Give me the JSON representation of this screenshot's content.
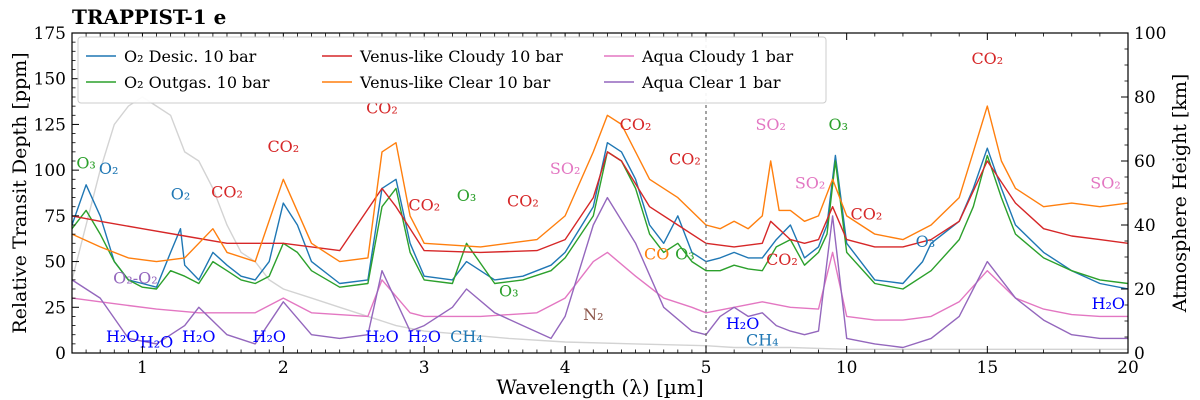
{
  "chart_data": {
    "type": "line",
    "title": "TRAPPIST-1 e",
    "xlabel": "Wavelength (λ) [µm]",
    "ylabel": "Relative Transit Depth [ppm]",
    "ylabel_right": "Atmosphere Height [km]",
    "xscale": "linear below 5 µm, compressed above 5 µm (split at dashed line)",
    "xlim": [
      0.5,
      20
    ],
    "ylim": [
      0,
      175
    ],
    "ylim_right": [
      0,
      100
    ],
    "x_split": 5,
    "grid": false,
    "legend_position": "top-left",
    "x_ticks": [
      1,
      2,
      3,
      4,
      5,
      10,
      15,
      20
    ],
    "y_ticks": [
      0,
      25,
      50,
      75,
      100,
      125,
      150,
      175
    ],
    "y_ticks_right": [
      0,
      20,
      40,
      60,
      80,
      100
    ],
    "x_tick_labels": [
      "1",
      "2",
      "3",
      "4",
      "5",
      "10",
      "15",
      "20"
    ],
    "y_tick_labels": [
      "0",
      "25",
      "50",
      "75",
      "100",
      "125",
      "150",
      "175"
    ],
    "y_tick_labels_right": [
      "0",
      "20",
      "40",
      "60",
      "80",
      "100"
    ],
    "stellar_contamination": {
      "color": "#d3d3d3",
      "x": [
        0.5,
        0.6,
        0.7,
        0.8,
        0.9,
        1.0,
        1.1,
        1.2,
        1.3,
        1.4,
        1.5,
        1.6,
        1.7,
        1.8,
        1.9,
        2.0,
        2.2,
        2.4,
        2.6,
        2.8,
        3.0,
        3.3,
        3.6,
        4.0,
        4.5,
        5.0,
        6,
        8,
        10,
        12,
        15,
        18,
        20
      ],
      "y": [
        40,
        70,
        100,
        125,
        135,
        140,
        135,
        130,
        110,
        105,
        90,
        70,
        55,
        50,
        40,
        35,
        30,
        25,
        20,
        15,
        12,
        10,
        8,
        6,
        5,
        4,
        3,
        3,
        2,
        2,
        2,
        2,
        2
      ]
    },
    "series": [
      {
        "name": "O₂ Desic. 10 bar",
        "color": "#1f77b4",
        "x": [
          0.5,
          0.6,
          0.7,
          0.8,
          0.9,
          1.0,
          1.1,
          1.2,
          1.27,
          1.3,
          1.4,
          1.5,
          1.6,
          1.7,
          1.8,
          1.9,
          2.0,
          2.1,
          2.2,
          2.4,
          2.6,
          2.7,
          2.8,
          2.9,
          3.0,
          3.2,
          3.3,
          3.5,
          3.7,
          3.9,
          4.0,
          4.2,
          4.3,
          4.4,
          4.5,
          4.6,
          4.7,
          4.8,
          4.9,
          5.0,
          5.5,
          6,
          6.5,
          7,
          7.5,
          8,
          8.5,
          9,
          9.3,
          9.6,
          10,
          11,
          12,
          12.7,
          13,
          14,
          14.5,
          15,
          15.5,
          16,
          17,
          18,
          19,
          20
        ],
        "y": [
          70,
          92,
          75,
          50,
          40,
          38,
          36,
          55,
          68,
          48,
          40,
          55,
          48,
          42,
          40,
          50,
          82,
          70,
          50,
          38,
          40,
          90,
          95,
          60,
          42,
          40,
          50,
          40,
          42,
          48,
          55,
          80,
          115,
          110,
          95,
          70,
          60,
          75,
          55,
          50,
          52,
          55,
          52,
          52,
          62,
          70,
          52,
          58,
          70,
          108,
          60,
          40,
          38,
          50,
          60,
          72,
          90,
          112,
          90,
          70,
          55,
          45,
          38,
          35
        ]
      },
      {
        "name": "O₂ Outgas. 10 bar",
        "color": "#2ca02c",
        "x": [
          0.5,
          0.6,
          0.7,
          0.8,
          0.9,
          1.0,
          1.1,
          1.2,
          1.3,
          1.4,
          1.5,
          1.6,
          1.7,
          1.8,
          1.9,
          2.0,
          2.1,
          2.2,
          2.4,
          2.6,
          2.7,
          2.8,
          2.9,
          3.0,
          3.2,
          3.3,
          3.5,
          3.7,
          3.9,
          4.0,
          4.2,
          4.3,
          4.4,
          4.5,
          4.6,
          4.7,
          4.8,
          4.9,
          5.0,
          5.5,
          6,
          6.5,
          7,
          7.5,
          8,
          8.5,
          9,
          9.3,
          9.6,
          10,
          11,
          12,
          13,
          14,
          14.5,
          15,
          15.5,
          16,
          17,
          18,
          19,
          20
        ],
        "y": [
          68,
          78,
          65,
          50,
          40,
          36,
          35,
          45,
          42,
          38,
          50,
          45,
          40,
          38,
          42,
          60,
          55,
          45,
          36,
          38,
          80,
          90,
          55,
          40,
          38,
          60,
          38,
          40,
          45,
          52,
          75,
          110,
          105,
          90,
          65,
          55,
          60,
          50,
          45,
          45,
          48,
          46,
          45,
          58,
          62,
          48,
          55,
          65,
          105,
          55,
          38,
          35,
          45,
          62,
          80,
          108,
          85,
          65,
          52,
          45,
          40,
          38
        ]
      },
      {
        "name": "Venus-like Cloudy 10 bar",
        "color": "#d62728",
        "x": [
          0.5,
          0.7,
          1.0,
          1.3,
          1.6,
          2.0,
          2.4,
          2.7,
          2.8,
          3.0,
          3.4,
          3.8,
          4.0,
          4.2,
          4.3,
          4.4,
          4.6,
          4.8,
          5.0,
          6,
          7,
          7.3,
          8,
          8.5,
          9,
          9.5,
          10,
          11,
          12,
          13,
          14,
          15,
          16,
          17,
          18,
          19,
          20
        ],
        "y": [
          75,
          72,
          68,
          64,
          60,
          60,
          56,
          90,
          80,
          56,
          55,
          56,
          62,
          85,
          110,
          105,
          80,
          70,
          60,
          58,
          60,
          72,
          62,
          60,
          62,
          80,
          62,
          58,
          58,
          62,
          72,
          105,
          82,
          68,
          64,
          62,
          60
        ]
      },
      {
        "name": "Venus-like Clear 10 bar",
        "color": "#ff7f0e",
        "x": [
          0.5,
          0.7,
          0.9,
          1.1,
          1.3,
          1.5,
          1.6,
          1.8,
          2.0,
          2.2,
          2.4,
          2.6,
          2.7,
          2.8,
          2.9,
          3.0,
          3.4,
          3.8,
          4.0,
          4.2,
          4.3,
          4.4,
          4.6,
          4.8,
          5.0,
          5.5,
          6,
          6.5,
          7,
          7.3,
          7.6,
          8,
          8.5,
          9,
          9.5,
          10,
          11,
          12,
          13,
          14,
          14.5,
          15,
          15.5,
          16,
          17,
          18,
          19,
          20
        ],
        "y": [
          65,
          58,
          52,
          50,
          52,
          68,
          55,
          50,
          95,
          60,
          50,
          52,
          110,
          115,
          75,
          60,
          58,
          62,
          75,
          110,
          130,
          125,
          95,
          85,
          70,
          68,
          72,
          68,
          75,
          105,
          78,
          78,
          72,
          75,
          95,
          75,
          65,
          62,
          70,
          85,
          110,
          135,
          105,
          90,
          80,
          82,
          80,
          82
        ]
      },
      {
        "name": "Aqua Cloudy 1 bar",
        "color": "#e377c2",
        "x": [
          0.5,
          0.7,
          0.9,
          1.1,
          1.4,
          1.8,
          2.0,
          2.2,
          2.6,
          2.7,
          2.9,
          3.0,
          3.4,
          3.8,
          4.0,
          4.2,
          4.3,
          4.5,
          4.7,
          4.9,
          5.0,
          6,
          7,
          8,
          9,
          9.5,
          10,
          11,
          12,
          13,
          14,
          15,
          16,
          17,
          18,
          19,
          20
        ],
        "y": [
          30,
          28,
          26,
          24,
          22,
          22,
          30,
          22,
          20,
          40,
          22,
          20,
          20,
          22,
          30,
          50,
          55,
          42,
          30,
          25,
          22,
          25,
          28,
          25,
          24,
          55,
          20,
          18,
          18,
          20,
          28,
          45,
          30,
          24,
          21,
          20,
          20
        ]
      },
      {
        "name": "Aqua Clear 1 bar",
        "color": "#9467bd",
        "x": [
          0.5,
          0.7,
          0.9,
          1.1,
          1.3,
          1.4,
          1.6,
          1.8,
          2.0,
          2.2,
          2.4,
          2.6,
          2.7,
          2.9,
          3.0,
          3.2,
          3.3,
          3.5,
          3.7,
          3.9,
          4.0,
          4.2,
          4.3,
          4.5,
          4.7,
          4.9,
          5.0,
          5.5,
          6,
          6.5,
          7,
          7.5,
          8,
          8.5,
          9,
          9.5,
          10,
          11,
          12,
          13,
          14,
          15,
          16,
          17,
          18,
          19,
          20
        ],
        "y": [
          40,
          30,
          8,
          5,
          15,
          25,
          10,
          5,
          28,
          10,
          8,
          10,
          45,
          12,
          15,
          25,
          35,
          22,
          15,
          8,
          20,
          70,
          85,
          60,
          25,
          12,
          10,
          20,
          25,
          20,
          22,
          15,
          12,
          10,
          12,
          75,
          8,
          5,
          3,
          8,
          20,
          50,
          30,
          18,
          10,
          8,
          8
        ]
      }
    ],
    "annotations": [
      {
        "text": "O₃",
        "color": "#2ca02c",
        "x": 0.6,
        "y": 101
      },
      {
        "text": "O₂",
        "color": "#1f77b4",
        "x": 0.76,
        "y": 98
      },
      {
        "text": "O₂",
        "color": "#1f77b4",
        "x": 1.27,
        "y": 84
      },
      {
        "text": "CO₂",
        "color": "#d62728",
        "x": 1.6,
        "y": 85
      },
      {
        "text": "CO₂",
        "color": "#d62728",
        "x": 2.0,
        "y": 110
      },
      {
        "text": "CO₂",
        "color": "#d62728",
        "x": 2.7,
        "y": 131
      },
      {
        "text": "CO₂",
        "color": "#d62728",
        "x": 3.0,
        "y": 78
      },
      {
        "text": "O₃",
        "color": "#2ca02c",
        "x": 3.3,
        "y": 83
      },
      {
        "text": "CO₂",
        "color": "#d62728",
        "x": 3.7,
        "y": 80
      },
      {
        "text": "SO₂",
        "color": "#e377c2",
        "x": 4.0,
        "y": 98
      },
      {
        "text": "CO₂",
        "color": "#d62728",
        "x": 4.5,
        "y": 122
      },
      {
        "text": "CO₂",
        "color": "#d62728",
        "x": 4.85,
        "y": 103
      },
      {
        "text": "CO",
        "color": "#ff7f0e",
        "x": 4.65,
        "y": 51
      },
      {
        "text": "O₃",
        "color": "#2ca02c",
        "x": 4.85,
        "y": 51
      },
      {
        "text": "O₃",
        "color": "#2ca02c",
        "x": 3.6,
        "y": 31
      },
      {
        "text": "O₂-O₂",
        "color": "#9467bd",
        "x": 0.95,
        "y": 38
      },
      {
        "text": "N₂",
        "color": "#8c564b",
        "x": 4.2,
        "y": 18
      },
      {
        "text": "H₂O",
        "color": "#0000ff",
        "x": 0.86,
        "y": 6
      },
      {
        "text": "H₂O",
        "color": "#0000ff",
        "x": 1.1,
        "y": 3
      },
      {
        "text": "H₂O",
        "color": "#0000ff",
        "x": 1.4,
        "y": 6
      },
      {
        "text": "H₂O",
        "color": "#0000ff",
        "x": 1.9,
        "y": 6
      },
      {
        "text": "H₂O",
        "color": "#0000ff",
        "x": 2.7,
        "y": 6
      },
      {
        "text": "H₂O",
        "color": "#0000ff",
        "x": 3.0,
        "y": 6
      },
      {
        "text": "CH₄",
        "color": "#1f77b4",
        "x": 3.3,
        "y": 6
      },
      {
        "text": "H₂O",
        "color": "#0000ff",
        "x": 6.3,
        "y": 13
      },
      {
        "text": "CH₄",
        "color": "#1f77b4",
        "x": 7.0,
        "y": 4
      },
      {
        "text": "SO₂",
        "color": "#e377c2",
        "x": 7.3,
        "y": 122
      },
      {
        "text": "O₃",
        "color": "#2ca02c",
        "x": 9.7,
        "y": 122
      },
      {
        "text": "SO₂",
        "color": "#e377c2",
        "x": 8.7,
        "y": 90
      },
      {
        "text": "CO₂",
        "color": "#d62728",
        "x": 10.7,
        "y": 73
      },
      {
        "text": "CO₂",
        "color": "#d62728",
        "x": 7.7,
        "y": 48
      },
      {
        "text": "O₃",
        "color": "#1f77b4",
        "x": 12.8,
        "y": 58
      },
      {
        "text": "CO₂",
        "color": "#d62728",
        "x": 15,
        "y": 158
      },
      {
        "text": "SO₂",
        "color": "#e377c2",
        "x": 19.2,
        "y": 90
      },
      {
        "text": "H₂O",
        "color": "#0000ff",
        "x": 19.3,
        "y": 24
      }
    ]
  }
}
